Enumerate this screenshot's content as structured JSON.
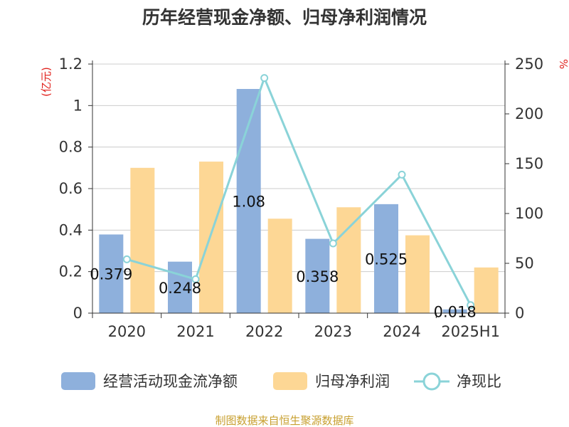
{
  "chart_data": {
    "type": "bar",
    "title": "历年经营现金净额、归母净利润情况",
    "categories": [
      "2020",
      "2021",
      "2022",
      "2023",
      "2024",
      "2025H1"
    ],
    "series": [
      {
        "name": "经营活动现金流净额",
        "kind": "bar",
        "axis": "left",
        "color": "#8eb0dc",
        "values": [
          0.379,
          0.248,
          1.08,
          0.358,
          0.525,
          0.018
        ],
        "labels": [
          "0.379",
          "0.248",
          "1.08",
          "0.358",
          "0.525",
          "0.018"
        ]
      },
      {
        "name": "归母净利润",
        "kind": "bar",
        "axis": "left",
        "color": "#fdd795",
        "values": [
          0.7,
          0.73,
          0.455,
          0.51,
          0.375,
          0.22
        ]
      },
      {
        "name": "净现比",
        "kind": "line",
        "axis": "right",
        "color": "#8ad3d8",
        "values": [
          54,
          34,
          236,
          70,
          139,
          8
        ]
      }
    ],
    "y_left": {
      "label": "(亿元)",
      "min": 0,
      "max": 1.2,
      "ticks": [
        "0",
        "0.2",
        "0.4",
        "0.6",
        "0.8",
        "1",
        "1.2"
      ]
    },
    "y_right": {
      "label": "%",
      "min": 0,
      "max": 250,
      "ticks": [
        "0",
        "50",
        "100",
        "150",
        "200",
        "250"
      ]
    },
    "grid": true,
    "legend": "bottom"
  },
  "source": "制图数据来自恒生聚源数据库"
}
